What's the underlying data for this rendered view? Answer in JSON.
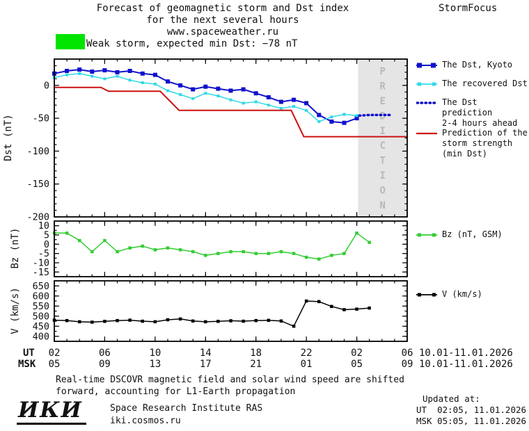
{
  "header": {
    "title_line1": "Forecast of geomagnetic storm and Dst index",
    "title_line2": "for the next several hours",
    "title_line3": "www.spaceweather.ru",
    "brand": "StormFocus"
  },
  "storm_banner": {
    "label": "Weak storm, expected min Dst: −78 nT",
    "color": "#00e400"
  },
  "legend_main": {
    "kyoto": "The Dst, Kyoto",
    "recovered": "The recovered Dst",
    "prediction_line1": "The Dst prediction",
    "prediction_line2": "2-4 hours ahead",
    "storm_line1": "Prediction of the",
    "storm_line2": "storm strength",
    "storm_line3": "(min Dst)"
  },
  "legend_bz": "Bz (nT, GSM)",
  "legend_v": "V (km/s)",
  "x_axis": {
    "ut_label": "UT",
    "msk_label": "MSK",
    "tick_hours": [
      2,
      6,
      10,
      14,
      18,
      22,
      26,
      30
    ],
    "ut_ticks": [
      "02",
      "06",
      "10",
      "14",
      "18",
      "22",
      "02",
      "06"
    ],
    "msk_ticks": [
      "05",
      "09",
      "13",
      "17",
      "21",
      "01",
      "05",
      "09"
    ],
    "ut_date": "10.01-11.01.2026",
    "msk_date": "10.01-11.01.2026"
  },
  "footer": {
    "line1": "Real-time DSCOVR magnetic field and solar wind speed are shifted",
    "line2": "forward, accounting for L1-Earth propagation"
  },
  "org": {
    "logo": "ИКИ",
    "name": "Space Research Institute RAS",
    "site": "iki.cosmos.ru"
  },
  "updated": {
    "label": "Updated at:",
    "ut": "UT  02:05, 11.01.2026",
    "msk": "MSK 05:05, 11.01.2026"
  },
  "chart_data": [
    {
      "type": "line",
      "id": "dst",
      "ylabel": "Dst (nT)",
      "xlim": [
        2,
        30
      ],
      "ylim": [
        -200,
        40
      ],
      "yticks": [
        0,
        -50,
        -100,
        -150,
        -200
      ],
      "ytick_minor": 10,
      "xticks": [
        2,
        6,
        10,
        14,
        18,
        22,
        26,
        30
      ],
      "xtick_minor": 1,
      "prediction_region": {
        "start": 26.1,
        "end": 30,
        "label": "PREDICTION",
        "bg": "#e5e5e5",
        "text_color": "#b8b8b8"
      },
      "series": [
        {
          "name": "The Dst, Kyoto",
          "color": "#1111cc",
          "marker": "square",
          "marker_size": 6,
          "line_width": 2,
          "x": [
            2,
            3,
            4,
            5,
            6,
            7,
            8,
            9,
            10,
            11,
            12,
            13,
            14,
            15,
            16,
            17,
            18,
            19,
            20,
            21,
            22,
            23,
            24,
            25,
            26
          ],
          "y": [
            18,
            22,
            24,
            21,
            23,
            20,
            22,
            18,
            16,
            6,
            0,
            -6,
            -2,
            -5,
            -8,
            -6,
            -12,
            -18,
            -25,
            -22,
            -27,
            -45,
            -55,
            -57,
            -50
          ]
        },
        {
          "name": "The recovered Dst",
          "color": "#2fd9e6",
          "marker": "square",
          "marker_size": 4,
          "line_width": 1.5,
          "x": [
            2,
            3,
            4,
            5,
            6,
            7,
            8,
            9,
            10,
            11,
            12,
            13,
            14,
            15,
            16,
            17,
            18,
            19,
            20,
            21,
            22,
            23,
            24,
            25,
            26
          ],
          "y": [
            12,
            16,
            18,
            14,
            10,
            14,
            8,
            4,
            2,
            -8,
            -14,
            -20,
            -12,
            -16,
            -22,
            -27,
            -25,
            -30,
            -35,
            -32,
            -38,
            -55,
            -48,
            -44,
            -46
          ]
        },
        {
          "name": "The Dst prediction 2-4 hours ahead",
          "color": "#1111cc",
          "line_width": 3.5,
          "dash": "1.5,4.5",
          "x": [
            26.2,
            27,
            28,
            28.6
          ],
          "y": [
            -46,
            -45,
            -45,
            -45
          ]
        },
        {
          "name": "Prediction of the storm strength (min Dst)",
          "color": "#cc1111",
          "line_width": 2,
          "x": [
            2,
            5.7,
            6.3,
            10.4,
            11.9,
            20.8,
            21.8,
            30
          ],
          "y": [
            -3,
            -3,
            -9,
            -9,
            -38,
            -38,
            -78,
            -78
          ]
        }
      ]
    },
    {
      "type": "line",
      "id": "bz",
      "ylabel": "Bz (nT)",
      "xlim": [
        2,
        30
      ],
      "ylim": [
        -17.5,
        12.5
      ],
      "yticks": [
        10,
        5,
        0,
        -5,
        -10,
        -15
      ],
      "ytick_minor": 2.5,
      "xticks": [
        2,
        6,
        10,
        14,
        18,
        22,
        26,
        30
      ],
      "xtick_minor": 1,
      "series": [
        {
          "name": "Bz (nT, GSM)",
          "color": "#33cc33",
          "marker": "square",
          "marker_size": 4.5,
          "line_width": 1.5,
          "x": [
            2,
            3,
            4,
            5,
            6,
            7,
            8,
            9,
            10,
            11,
            12,
            13,
            14,
            15,
            16,
            17,
            18,
            19,
            20,
            21,
            22,
            23,
            24,
            25,
            26,
            27
          ],
          "y": [
            6,
            6,
            2,
            -4,
            2,
            -4,
            -2,
            -1,
            -3,
            -2,
            -3,
            -4,
            -6,
            -5,
            -4,
            -4,
            -5,
            -5,
            -4,
            -5,
            -7,
            -8,
            -6,
            -5,
            6,
            1
          ]
        }
      ]
    },
    {
      "type": "line",
      "id": "v",
      "ylabel": "V (km/s)",
      "xlim": [
        2,
        30
      ],
      "ylim": [
        375,
        675
      ],
      "yticks": [
        650,
        600,
        550,
        500,
        450,
        400
      ],
      "ytick_minor": 25,
      "xticks": [
        2,
        6,
        10,
        14,
        18,
        22,
        26,
        30
      ],
      "xtick_minor": 1,
      "series": [
        {
          "name": "V (km/s)",
          "color": "#000000",
          "marker": "square",
          "marker_size": 4.5,
          "line_width": 1.5,
          "x": [
            2,
            3,
            4,
            5,
            6,
            7,
            8,
            9,
            10,
            11,
            12,
            13,
            14,
            15,
            16,
            17,
            18,
            19,
            20,
            21,
            22,
            23,
            24,
            25,
            26,
            27
          ],
          "y": [
            480,
            478,
            472,
            470,
            474,
            478,
            480,
            475,
            472,
            482,
            486,
            476,
            472,
            474,
            477,
            475,
            478,
            479,
            476,
            450,
            575,
            572,
            548,
            532,
            535,
            540
          ]
        }
      ]
    }
  ]
}
